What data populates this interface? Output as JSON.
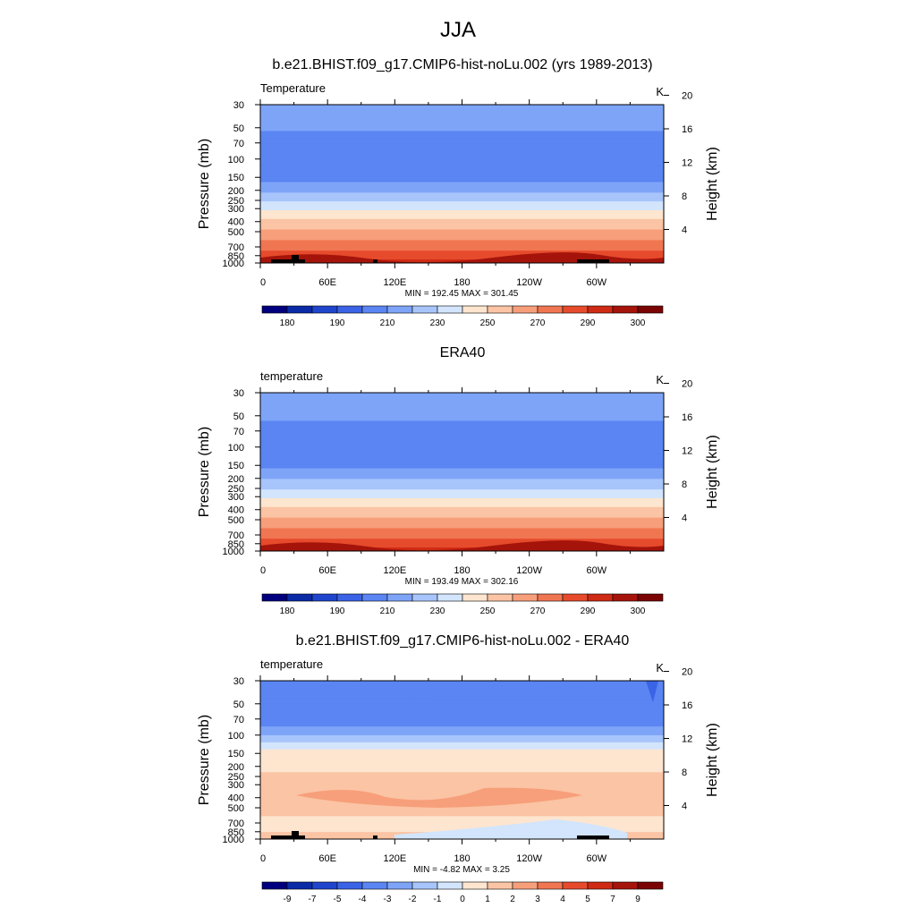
{
  "figure": {
    "title": "JJA"
  },
  "chart_data": [
    {
      "type": "heatmap",
      "title": "b.e21.BHIST.f09_g17.CMIP6-hist-noLu.002 (yrs 1989-2013)",
      "left_label": "Temperature",
      "units": "K",
      "xlabel": "",
      "ylabel": "Pressure (mb)",
      "ylabel_right": "Height (km)",
      "x_ticks": [
        "0",
        "60E",
        "120E",
        "180",
        "120W",
        "60W"
      ],
      "y_ticks": [
        "30",
        "50",
        "70",
        "100",
        "150",
        "200",
        "250",
        "300",
        "400",
        "500",
        "700",
        "850",
        "1000"
      ],
      "y_ticks_right": [
        "20",
        "16",
        "12",
        "8",
        "4"
      ],
      "stats": "MIN = 192.45  MAX = 301.45",
      "min": 192.45,
      "max": 301.45,
      "colorbar": {
        "colors": [
          "#00007f",
          "#0a2aa6",
          "#1f45cc",
          "#3a63e6",
          "#5a85f2",
          "#7ea4f8",
          "#a7c5fb",
          "#d2e5fd",
          "#fde5cf",
          "#fbc4a4",
          "#f79f7a",
          "#f07652",
          "#e64b2c",
          "#cf2a14",
          "#a5140b",
          "#7a0403"
        ],
        "tick_labels": [
          "180",
          "190",
          "210",
          "230",
          "250",
          "270",
          "290",
          "300"
        ]
      },
      "profile_levels": [
        {
          "pressure_mb": 30,
          "temperature_K": 218
        },
        {
          "pressure_mb": 50,
          "temperature_K": 212
        },
        {
          "pressure_mb": 70,
          "temperature_K": 204
        },
        {
          "pressure_mb": 100,
          "temperature_K": 200
        },
        {
          "pressure_mb": 150,
          "temperature_K": 206
        },
        {
          "pressure_mb": 200,
          "temperature_K": 218
        },
        {
          "pressure_mb": 250,
          "temperature_K": 228
        },
        {
          "pressure_mb": 300,
          "temperature_K": 238
        },
        {
          "pressure_mb": 400,
          "temperature_K": 252
        },
        {
          "pressure_mb": 500,
          "temperature_K": 262
        },
        {
          "pressure_mb": 700,
          "temperature_K": 276
        },
        {
          "pressure_mb": 850,
          "temperature_K": 285
        },
        {
          "pressure_mb": 1000,
          "temperature_K": 295
        }
      ]
    },
    {
      "type": "heatmap",
      "title": "ERA40",
      "left_label": "temperature",
      "units": "K",
      "xlabel": "",
      "ylabel": "Pressure (mb)",
      "ylabel_right": "Height (km)",
      "x_ticks": [
        "0",
        "60E",
        "120E",
        "180",
        "120W",
        "60W"
      ],
      "y_ticks": [
        "30",
        "50",
        "70",
        "100",
        "150",
        "200",
        "250",
        "300",
        "400",
        "500",
        "700",
        "850",
        "1000"
      ],
      "y_ticks_right": [
        "20",
        "16",
        "12",
        "8",
        "4"
      ],
      "stats": "MIN = 193.49  MAX = 302.16",
      "min": 193.49,
      "max": 302.16,
      "colorbar": {
        "colors": [
          "#00007f",
          "#0a2aa6",
          "#1f45cc",
          "#3a63e6",
          "#5a85f2",
          "#7ea4f8",
          "#a7c5fb",
          "#d2e5fd",
          "#fde5cf",
          "#fbc4a4",
          "#f79f7a",
          "#f07652",
          "#e64b2c",
          "#cf2a14",
          "#a5140b",
          "#7a0403"
        ],
        "tick_labels": [
          "180",
          "190",
          "210",
          "230",
          "250",
          "270",
          "290",
          "300"
        ]
      },
      "profile_levels": [
        {
          "pressure_mb": 30,
          "temperature_K": 218
        },
        {
          "pressure_mb": 50,
          "temperature_K": 212
        },
        {
          "pressure_mb": 70,
          "temperature_K": 205
        },
        {
          "pressure_mb": 100,
          "temperature_K": 200
        },
        {
          "pressure_mb": 150,
          "temperature_K": 207
        },
        {
          "pressure_mb": 200,
          "temperature_K": 219
        },
        {
          "pressure_mb": 250,
          "temperature_K": 229
        },
        {
          "pressure_mb": 300,
          "temperature_K": 239
        },
        {
          "pressure_mb": 400,
          "temperature_K": 252
        },
        {
          "pressure_mb": 500,
          "temperature_K": 262
        },
        {
          "pressure_mb": 700,
          "temperature_K": 276
        },
        {
          "pressure_mb": 850,
          "temperature_K": 285
        },
        {
          "pressure_mb": 1000,
          "temperature_K": 296
        }
      ]
    },
    {
      "type": "heatmap",
      "title": "b.e21.BHIST.f09_g17.CMIP6-hist-noLu.002 - ERA40",
      "left_label": "temperature",
      "units": "K",
      "xlabel": "",
      "ylabel": "Pressure (mb)",
      "ylabel_right": "Height (km)",
      "x_ticks": [
        "0",
        "60E",
        "120E",
        "180",
        "120W",
        "60W"
      ],
      "y_ticks": [
        "30",
        "50",
        "70",
        "100",
        "150",
        "200",
        "250",
        "300",
        "400",
        "500",
        "700",
        "850",
        "1000"
      ],
      "y_ticks_right": [
        "20",
        "16",
        "12",
        "8",
        "4"
      ],
      "stats": "MIN =  -4.82  MAX =   3.25",
      "min": -4.82,
      "max": 3.25,
      "colorbar": {
        "colors": [
          "#00007f",
          "#0a2aa6",
          "#1f45cc",
          "#3a63e6",
          "#5a85f2",
          "#7ea4f8",
          "#a7c5fb",
          "#d2e5fd",
          "#fde5cf",
          "#fbc4a4",
          "#f79f7a",
          "#f07652",
          "#e64b2c",
          "#cf2a14",
          "#a5140b",
          "#7a0403"
        ],
        "tick_labels": [
          "-9",
          "-7",
          "-5",
          "-4",
          "-3",
          "-2",
          "-1",
          "0",
          "1",
          "2",
          "3",
          "4",
          "5",
          "7",
          "9"
        ]
      },
      "profile_levels": [
        {
          "pressure_mb": 30,
          "difference_K": -3
        },
        {
          "pressure_mb": 50,
          "difference_K": -3
        },
        {
          "pressure_mb": 70,
          "difference_K": -4
        },
        {
          "pressure_mb": 100,
          "difference_K": -2
        },
        {
          "pressure_mb": 150,
          "difference_K": 0.5
        },
        {
          "pressure_mb": 200,
          "difference_K": 0.5
        },
        {
          "pressure_mb": 250,
          "difference_K": 1.5
        },
        {
          "pressure_mb": 300,
          "difference_K": 1.5
        },
        {
          "pressure_mb": 400,
          "difference_K": 2
        },
        {
          "pressure_mb": 500,
          "difference_K": 1.5
        },
        {
          "pressure_mb": 700,
          "difference_K": 0.5
        },
        {
          "pressure_mb": 850,
          "difference_K": 1
        },
        {
          "pressure_mb": 1000,
          "difference_K": 1.5
        }
      ]
    }
  ]
}
